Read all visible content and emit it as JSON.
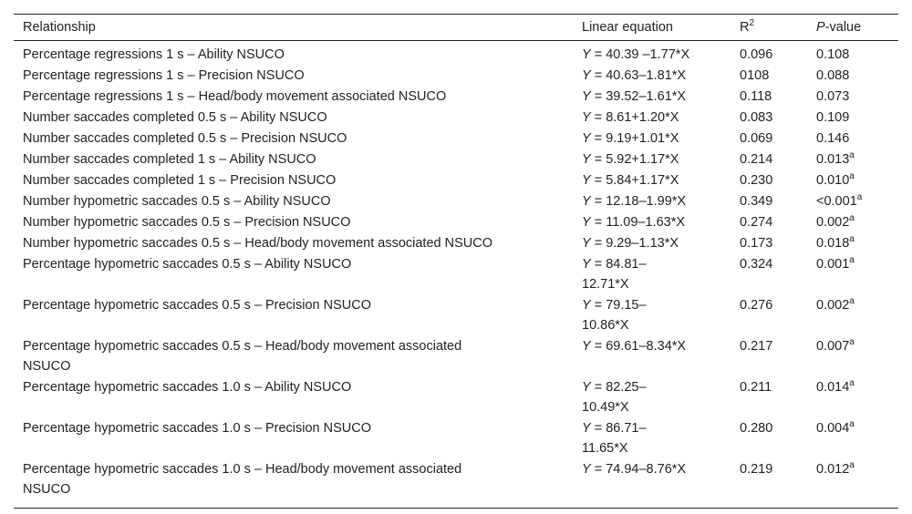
{
  "header": {
    "relationship": "Relationship",
    "equation": "Linear equation",
    "r2_base": "R",
    "r2_sup": "2",
    "p_italic": "P",
    "p_rest": "-value"
  },
  "rows": [
    {
      "rel": [
        "Percentage regressions 1 s – Ability NSUCO"
      ],
      "eq": [
        "40.39 –1.77*X"
      ],
      "r2": "0.096",
      "p": "0.108",
      "sig": ""
    },
    {
      "rel": [
        "Percentage regressions 1 s – Precision NSUCO"
      ],
      "eq": [
        "40.63–1.81*X"
      ],
      "r2": "0108",
      "p": "0.088",
      "sig": ""
    },
    {
      "rel": [
        "Percentage regressions 1 s – Head/body movement associated NSUCO"
      ],
      "eq": [
        "39.52–1.61*X"
      ],
      "r2": "0.118",
      "p": "0.073",
      "sig": ""
    },
    {
      "rel": [
        "Number saccades completed 0.5 s – Ability NSUCO"
      ],
      "eq": [
        "8.61+1.20*X"
      ],
      "r2": "0.083",
      "p": "0.109",
      "sig": ""
    },
    {
      "rel": [
        "Number saccades completed 0.5 s – Precision NSUCO"
      ],
      "eq": [
        "9.19+1.01*X"
      ],
      "r2": "0.069",
      "p": "0.146",
      "sig": ""
    },
    {
      "rel": [
        "Number saccades completed 1 s – Ability NSUCO"
      ],
      "eq": [
        "5.92+1.17*X"
      ],
      "r2": "0.214",
      "p": "0.013",
      "sig": "a"
    },
    {
      "rel": [
        "Number saccades completed 1 s – Precision NSUCO"
      ],
      "eq": [
        "5.84+1.17*X"
      ],
      "r2": "0.230",
      "p": "0.010",
      "sig": "a"
    },
    {
      "rel": [
        "Number hypometric saccades 0.5 s – Ability NSUCO"
      ],
      "eq": [
        "12.18–1.99*X"
      ],
      "r2": "0.349",
      "p": "<0.001",
      "sig": "a"
    },
    {
      "rel": [
        "Number hypometric saccades 0.5 s – Precision NSUCO"
      ],
      "eq": [
        "11.09–1.63*X"
      ],
      "r2": "0.274",
      "p": "0.002",
      "sig": "a"
    },
    {
      "rel": [
        "Number hypometric saccades 0.5 s – Head/body movement associated NSUCO"
      ],
      "eq": [
        "9.29–1.13*X"
      ],
      "r2": "0.173",
      "p": "0.018",
      "sig": "a"
    },
    {
      "rel": [
        "Percentage hypometric saccades 0.5 s – Ability NSUCO"
      ],
      "eq": [
        "84.81–",
        "12.71*X"
      ],
      "r2": "0.324",
      "p": "0.001",
      "sig": "a"
    },
    {
      "rel": [
        "Percentage hypometric saccades 0.5 s – Precision NSUCO"
      ],
      "eq": [
        "79.15–",
        "10.86*X"
      ],
      "r2": "0.276",
      "p": "0.002",
      "sig": "a"
    },
    {
      "rel": [
        "Percentage hypometric saccades 0.5 s – Head/body movement associated",
        "NSUCO"
      ],
      "eq": [
        "69.61–8.34*X"
      ],
      "r2": "0.217",
      "p": "0.007",
      "sig": "a"
    },
    {
      "rel": [
        "Percentage hypometric saccades 1.0 s – Ability NSUCO"
      ],
      "eq": [
        "82.25–",
        "10.49*X"
      ],
      "r2": "0.211",
      "p": "0.014",
      "sig": "a"
    },
    {
      "rel": [
        "Percentage hypometric saccades 1.0 s – Precision NSUCO"
      ],
      "eq": [
        "86.71–",
        "11.65*X"
      ],
      "r2": "0.280",
      "p": "0.004",
      "sig": "a"
    },
    {
      "rel": [
        "Percentage hypometric saccades 1.0 s – Head/body movement associated",
        "NSUCO"
      ],
      "eq": [
        "74.94–8.76*X"
      ],
      "r2": "0.219",
      "p": "0.012",
      "sig": "a"
    }
  ],
  "eq_prefix_var": "Y",
  "eq_prefix_op": " = "
}
